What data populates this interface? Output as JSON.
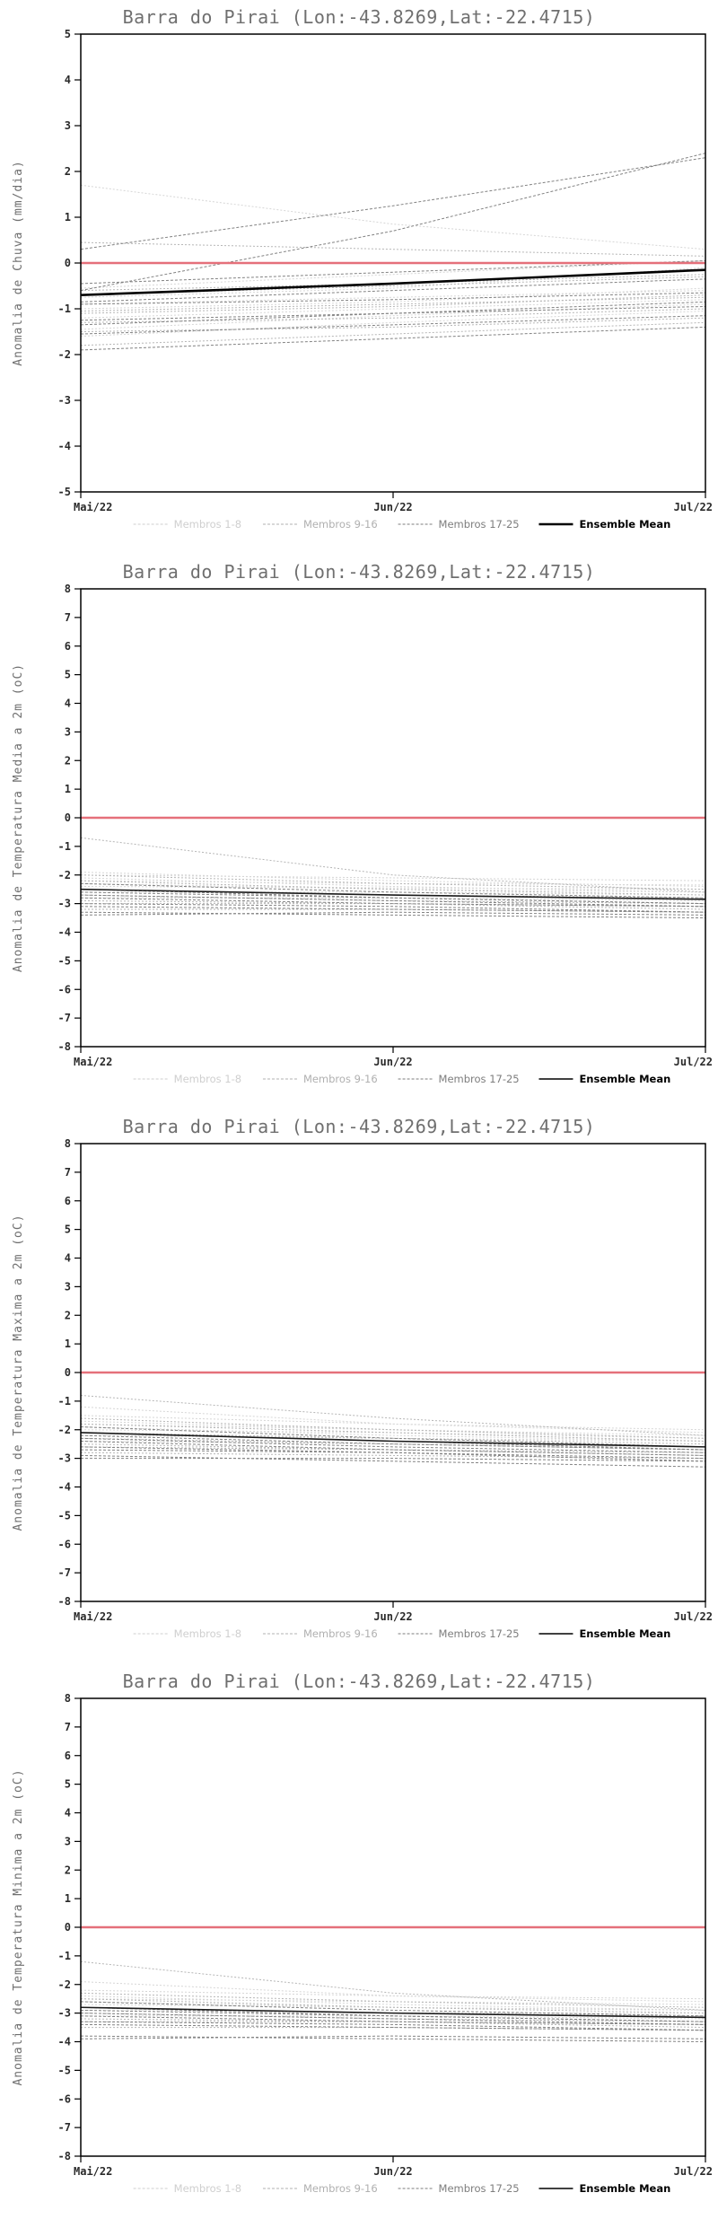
{
  "page": {
    "background": "#ffffff"
  },
  "chart_data": [
    {
      "type": "line",
      "title": "Barra do Pirai (Lon:-43.8269,Lat:-22.4715)",
      "ylabel": "Anomalia de Chuva (mm/dia)",
      "x_ticklabels": [
        "Mai/22",
        "Jun/22",
        "Jul/22"
      ],
      "ylim": [
        -5,
        5
      ],
      "ytick_step": 1,
      "grid": false,
      "legend_position": "bottom",
      "zero_line": true,
      "zero_line_color": "#e5707a",
      "legend": [
        {
          "label": "Membros 1-8",
          "color": "#cfcfcf",
          "dash": true,
          "width": 1,
          "bold": false
        },
        {
          "label": "Membros 9-16",
          "color": "#b0b0b0",
          "dash": true,
          "width": 1,
          "bold": false
        },
        {
          "label": "Membros 17-25",
          "color": "#7d7d7d",
          "dash": true,
          "width": 1,
          "bold": false
        },
        {
          "label": "Ensemble Mean",
          "color": "#000000",
          "dash": false,
          "width": 2.6,
          "bold": true
        }
      ],
      "groups": [
        {
          "name": "Membros 1-8",
          "color": "#d6d6d6",
          "dash": "2,2",
          "width": 1,
          "mean": false,
          "series": [
            [
              1.7,
              0.85,
              0.3
            ],
            [
              -0.75,
              -0.55,
              -0.1
            ],
            [
              -1.0,
              -0.85,
              -0.55
            ],
            [
              -1.2,
              -1.0,
              -0.8
            ],
            [
              -1.45,
              -1.15,
              -0.9
            ],
            [
              -0.9,
              -0.75,
              -0.6
            ],
            [
              -1.6,
              -1.3,
              -1.05
            ],
            [
              -0.55,
              -0.25,
              0.05
            ]
          ]
        },
        {
          "name": "Membros 9-16",
          "color": "#b6b6b6",
          "dash": "2,2",
          "width": 1,
          "mean": false,
          "series": [
            [
              0.45,
              0.3,
              0.15
            ],
            [
              -0.7,
              -0.5,
              -0.3
            ],
            [
              -1.1,
              -0.95,
              -0.7
            ],
            [
              -1.3,
              -1.2,
              -1.0
            ],
            [
              -1.5,
              -1.4,
              -1.2
            ],
            [
              -0.6,
              -0.45,
              -0.25
            ],
            [
              -1.8,
              -1.55,
              -1.3
            ],
            [
              -1.05,
              -0.9,
              -0.75
            ]
          ]
        },
        {
          "name": "Membros 17-25",
          "color": "#828282",
          "dash": "3,2",
          "width": 1,
          "mean": false,
          "series": [
            [
              0.3,
              1.25,
              2.3
            ],
            [
              -0.6,
              0.7,
              2.4
            ],
            [
              -0.45,
              -0.2,
              0.05
            ],
            [
              -0.9,
              -0.8,
              -0.65
            ],
            [
              -1.25,
              -1.1,
              -0.95
            ],
            [
              -1.55,
              -1.35,
              -1.15
            ],
            [
              -1.9,
              -1.65,
              -1.4
            ],
            [
              -0.85,
              -0.6,
              -0.35
            ],
            [
              -1.35,
              -1.1,
              -0.85
            ]
          ]
        },
        {
          "name": "Ensemble Mean",
          "color": "#000000",
          "dash": "",
          "width": 2.6,
          "mean": true,
          "series": [
            [
              -0.7,
              -0.45,
              -0.15
            ]
          ]
        }
      ]
    },
    {
      "type": "line",
      "title": "Barra do Pirai (Lon:-43.8269,Lat:-22.4715)",
      "ylabel": "Anomalia de Temperatura Media a 2m (oC)",
      "x_ticklabels": [
        "Mai/22",
        "Jun/22",
        "Jul/22"
      ],
      "ylim": [
        -8,
        8
      ],
      "ytick_step": 1,
      "grid": false,
      "legend_position": "bottom",
      "zero_line": true,
      "zero_line_color": "#e5707a",
      "legend": [
        {
          "label": "Membros 1-8",
          "color": "#cfcfcf",
          "dash": true,
          "width": 1,
          "bold": false
        },
        {
          "label": "Membros 9-16",
          "color": "#b0b0b0",
          "dash": true,
          "width": 1,
          "bold": false
        },
        {
          "label": "Membros 17-25",
          "color": "#7d7d7d",
          "dash": true,
          "width": 1,
          "bold": false
        },
        {
          "label": "Ensemble Mean",
          "color": "#000000",
          "dash": false,
          "width": 1.6,
          "bold": true
        }
      ],
      "groups": [
        {
          "name": "Membros 1-8",
          "color": "#d6d6d6",
          "dash": "2,2",
          "width": 1,
          "mean": false,
          "series": [
            [
              -2.0,
              -2.1,
              -2.2
            ],
            [
              -2.2,
              -2.3,
              -2.35
            ],
            [
              -2.4,
              -2.45,
              -2.5
            ],
            [
              -1.9,
              -2.2,
              -2.4
            ],
            [
              -2.6,
              -2.6,
              -2.7
            ],
            [
              -2.1,
              -2.4,
              -2.6
            ],
            [
              -2.8,
              -2.8,
              -2.9
            ],
            [
              -2.3,
              -2.5,
              -2.6
            ]
          ]
        },
        {
          "name": "Membros 9-16",
          "color": "#b6b6b6",
          "dash": "2,2",
          "width": 1,
          "mean": false,
          "series": [
            [
              -0.7,
              -2.0,
              -2.6
            ],
            [
              -2.5,
              -2.7,
              -2.8
            ],
            [
              -3.0,
              -3.0,
              -3.1
            ],
            [
              -2.2,
              -2.5,
              -2.7
            ],
            [
              -2.7,
              -2.9,
              -3.0
            ],
            [
              -3.2,
              -3.2,
              -3.3
            ],
            [
              -2.0,
              -2.3,
              -2.5
            ],
            [
              -2.9,
              -3.0,
              -3.2
            ]
          ]
        },
        {
          "name": "Membros 17-25",
          "color": "#828282",
          "dash": "3,2",
          "width": 1,
          "mean": false,
          "series": [
            [
              -3.4,
              -3.3,
              -3.4
            ],
            [
              -3.1,
              -3.2,
              -3.3
            ],
            [
              -2.6,
              -2.8,
              -3.0
            ],
            [
              -2.3,
              -2.6,
              -2.8
            ],
            [
              -3.3,
              -3.4,
              -3.5
            ],
            [
              -2.8,
              -3.0,
              -3.1
            ],
            [
              -2.5,
              -2.8,
              -3.0
            ],
            [
              -3.0,
              -3.1,
              -3.3
            ],
            [
              -2.7,
              -2.9,
              -3.1
            ]
          ]
        },
        {
          "name": "Ensemble Mean",
          "color": "#1a1a1a",
          "dash": "",
          "width": 1.6,
          "mean": true,
          "series": [
            [
              -2.5,
              -2.7,
              -2.85
            ]
          ]
        }
      ]
    },
    {
      "type": "line",
      "title": "Barra do Pirai (Lon:-43.8269,Lat:-22.4715)",
      "ylabel": "Anomalia de Temperatura Maxima a 2m (oC)",
      "x_ticklabels": [
        "Mai/22",
        "Jun/22",
        "Jul/22"
      ],
      "ylim": [
        -8,
        8
      ],
      "ytick_step": 1,
      "grid": false,
      "legend_position": "bottom",
      "zero_line": true,
      "zero_line_color": "#e5707a",
      "legend": [
        {
          "label": "Membros 1-8",
          "color": "#cfcfcf",
          "dash": true,
          "width": 1,
          "bold": false
        },
        {
          "label": "Membros 9-16",
          "color": "#b0b0b0",
          "dash": true,
          "width": 1,
          "bold": false
        },
        {
          "label": "Membros 17-25",
          "color": "#7d7d7d",
          "dash": true,
          "width": 1,
          "bold": false
        },
        {
          "label": "Ensemble Mean",
          "color": "#000000",
          "dash": false,
          "width": 1.6,
          "bold": true
        }
      ],
      "groups": [
        {
          "name": "Membros 1-8",
          "color": "#d6d6d6",
          "dash": "2,2",
          "width": 1,
          "mean": false,
          "series": [
            [
              -1.5,
              -1.8,
              -2.0
            ],
            [
              -1.8,
              -2.0,
              -2.2
            ],
            [
              -2.0,
              -2.1,
              -2.3
            ],
            [
              -1.2,
              -1.8,
              -2.1
            ],
            [
              -2.2,
              -2.3,
              -2.4
            ],
            [
              -1.7,
              -2.0,
              -2.3
            ],
            [
              -2.4,
              -2.5,
              -2.6
            ],
            [
              -1.9,
              -2.2,
              -2.4
            ]
          ]
        },
        {
          "name": "Membros 9-16",
          "color": "#b6b6b6",
          "dash": "2,2",
          "width": 1,
          "mean": false,
          "series": [
            [
              -0.8,
              -1.6,
              -2.2
            ],
            [
              -2.1,
              -2.3,
              -2.5
            ],
            [
              -2.6,
              -2.7,
              -2.8
            ],
            [
              -1.8,
              -2.1,
              -2.4
            ],
            [
              -2.3,
              -2.5,
              -2.7
            ],
            [
              -2.8,
              -2.9,
              -3.0
            ],
            [
              -1.6,
              -2.0,
              -2.3
            ],
            [
              -2.5,
              -2.7,
              -2.9
            ]
          ]
        },
        {
          "name": "Membros 17-25",
          "color": "#828282",
          "dash": "3,2",
          "width": 1,
          "mean": false,
          "series": [
            [
              -3.0,
              -3.0,
              -3.1
            ],
            [
              -2.7,
              -2.8,
              -3.0
            ],
            [
              -2.2,
              -2.5,
              -2.7
            ],
            [
              -1.9,
              -2.3,
              -2.6
            ],
            [
              -2.9,
              -3.1,
              -3.3
            ],
            [
              -2.4,
              -2.7,
              -2.9
            ],
            [
              -2.1,
              -2.4,
              -2.7
            ],
            [
              -2.6,
              -2.8,
              -3.1
            ],
            [
              -2.3,
              -2.6,
              -2.8
            ]
          ]
        },
        {
          "name": "Ensemble Mean",
          "color": "#1a1a1a",
          "dash": "",
          "width": 1.6,
          "mean": true,
          "series": [
            [
              -2.1,
              -2.4,
              -2.6
            ]
          ]
        }
      ]
    },
    {
      "type": "line",
      "title": "Barra do Pirai (Lon:-43.8269,Lat:-22.4715)",
      "ylabel": "Anomalia de Temperatura Minima a 2m (oC)",
      "x_ticklabels": [
        "Mai/22",
        "Jun/22",
        "Jul/22"
      ],
      "ylim": [
        -8,
        8
      ],
      "ytick_step": 1,
      "grid": false,
      "legend_position": "bottom",
      "zero_line": true,
      "zero_line_color": "#e5707a",
      "legend": [
        {
          "label": "Membros 1-8",
          "color": "#cfcfcf",
          "dash": true,
          "width": 1,
          "bold": false
        },
        {
          "label": "Membros 9-16",
          "color": "#b0b0b0",
          "dash": true,
          "width": 1,
          "bold": false
        },
        {
          "label": "Membros 17-25",
          "color": "#7d7d7d",
          "dash": true,
          "width": 1,
          "bold": false
        },
        {
          "label": "Ensemble Mean",
          "color": "#000000",
          "dash": false,
          "width": 1.6,
          "bold": true
        }
      ],
      "groups": [
        {
          "name": "Membros 1-8",
          "color": "#d6d6d6",
          "dash": "2,2",
          "width": 1,
          "mean": false,
          "series": [
            [
              -2.2,
              -2.4,
              -2.5
            ],
            [
              -2.5,
              -2.6,
              -2.7
            ],
            [
              -2.7,
              -2.8,
              -2.9
            ],
            [
              -1.9,
              -2.4,
              -2.6
            ],
            [
              -2.9,
              -3.0,
              -3.0
            ],
            [
              -2.4,
              -2.7,
              -2.9
            ],
            [
              -3.1,
              -3.1,
              -3.2
            ],
            [
              -2.6,
              -2.8,
              -2.9
            ]
          ]
        },
        {
          "name": "Membros 9-16",
          "color": "#b6b6b6",
          "dash": "2,2",
          "width": 1,
          "mean": false,
          "series": [
            [
              -1.2,
              -2.3,
              -2.9
            ],
            [
              -2.8,
              -3.0,
              -3.1
            ],
            [
              -3.3,
              -3.3,
              -3.4
            ],
            [
              -2.5,
              -2.8,
              -3.0
            ],
            [
              -3.0,
              -3.2,
              -3.3
            ],
            [
              -3.5,
              -3.5,
              -3.6
            ],
            [
              -2.3,
              -2.6,
              -2.8
            ],
            [
              -3.2,
              -3.3,
              -3.5
            ]
          ]
        },
        {
          "name": "Membros 17-25",
          "color": "#828282",
          "dash": "3,2",
          "width": 1,
          "mean": false,
          "series": [
            [
              -3.9,
              -3.8,
              -3.9
            ],
            [
              -3.4,
              -3.5,
              -3.6
            ],
            [
              -2.9,
              -3.1,
              -3.3
            ],
            [
              -2.6,
              -2.9,
              -3.1
            ],
            [
              -3.8,
              -3.9,
              -4.0
            ],
            [
              -3.1,
              -3.3,
              -3.4
            ],
            [
              -2.8,
              -3.1,
              -3.3
            ],
            [
              -3.3,
              -3.4,
              -3.6
            ],
            [
              -3.0,
              -3.2,
              -3.4
            ]
          ]
        },
        {
          "name": "Ensemble Mean",
          "color": "#1a1a1a",
          "dash": "",
          "width": 1.6,
          "mean": true,
          "series": [
            [
              -2.8,
              -3.0,
              -3.15
            ]
          ]
        }
      ]
    }
  ]
}
